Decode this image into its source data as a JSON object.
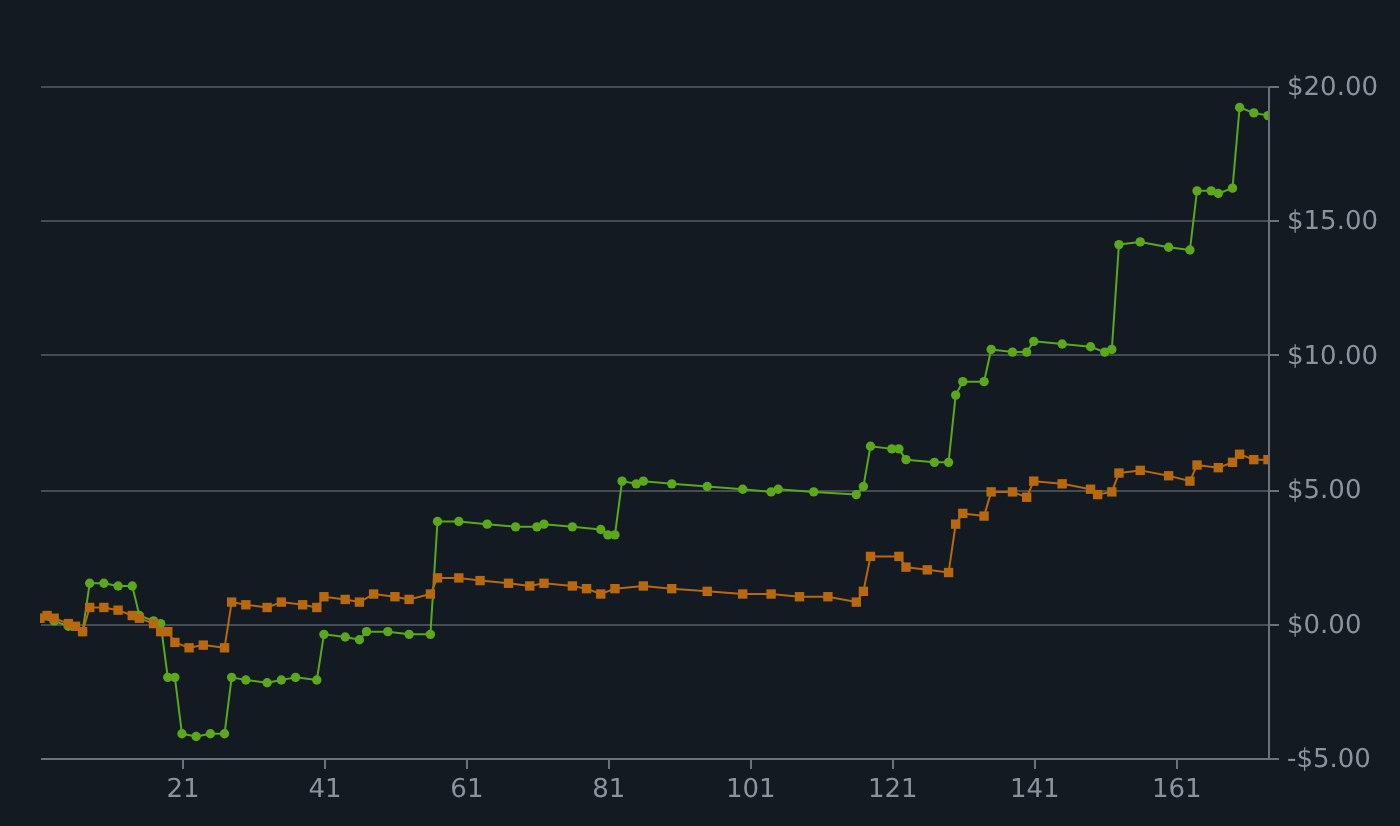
{
  "chart_data": {
    "type": "line",
    "xlim": [
      1,
      174
    ],
    "xticks": [
      21,
      41,
      61,
      81,
      101,
      121,
      141,
      161
    ],
    "ylim": [
      -5,
      20
    ],
    "yticks": [
      {
        "value": -5,
        "label": "-$5.00"
      },
      {
        "value": 0,
        "label": "$0.00"
      },
      {
        "value": 5,
        "label": "$5.00"
      },
      {
        "value": 10,
        "label": "$10.00"
      },
      {
        "value": 15,
        "label": "$15.00"
      },
      {
        "value": 20,
        "label": "$20.00"
      }
    ],
    "grid": "y",
    "series": [
      {
        "color": "#5ca81c",
        "marker": "circle",
        "x": [
          1,
          3,
          5,
          7,
          8,
          10,
          12,
          14,
          15,
          17,
          18,
          19,
          20,
          21,
          23,
          25,
          27,
          28,
          30,
          33,
          35,
          37,
          40,
          41,
          44,
          46,
          47,
          50,
          53,
          56,
          57,
          60,
          64,
          68,
          71,
          72,
          76,
          80,
          81,
          82,
          83,
          85,
          86,
          90,
          95,
          100,
          104,
          105,
          110,
          116,
          117,
          118,
          121,
          122,
          123,
          127,
          129,
          130,
          131,
          134,
          135,
          138,
          140,
          141,
          145,
          149,
          151,
          152,
          153,
          156,
          160,
          163,
          164,
          166,
          167,
          169,
          170,
          172,
          174
        ],
        "values": [
          0.2,
          0.1,
          -0.1,
          -0.3,
          1.5,
          1.5,
          1.4,
          1.4,
          0.3,
          0.1,
          0.0,
          -2.0,
          -2.0,
          -4.1,
          -4.2,
          -4.1,
          -4.1,
          -2.0,
          -2.1,
          -2.2,
          -2.1,
          -2.0,
          -2.1,
          -0.4,
          -0.5,
          -0.6,
          -0.3,
          -0.3,
          -0.4,
          -0.4,
          3.8,
          3.8,
          3.7,
          3.6,
          3.6,
          3.7,
          3.6,
          3.5,
          3.3,
          3.3,
          5.3,
          5.2,
          5.3,
          5.2,
          5.1,
          5.0,
          4.9,
          5.0,
          4.9,
          4.8,
          5.1,
          6.6,
          6.5,
          6.5,
          6.1,
          6.0,
          6.0,
          8.5,
          9.0,
          9.0,
          10.2,
          10.1,
          10.1,
          10.5,
          10.4,
          10.3,
          10.1,
          10.2,
          14.1,
          14.2,
          14.0,
          13.9,
          16.1,
          16.1,
          16.0,
          16.2,
          19.2,
          19.0,
          18.9
        ]
      },
      {
        "color": "#b8680f",
        "marker": "square",
        "x": [
          1,
          2,
          3,
          5,
          6,
          7,
          8,
          10,
          12,
          14,
          15,
          17,
          18,
          19,
          20,
          22,
          24,
          27,
          28,
          30,
          33,
          35,
          38,
          40,
          41,
          44,
          46,
          48,
          51,
          53,
          56,
          57,
          60,
          63,
          67,
          70,
          72,
          76,
          78,
          80,
          82,
          86,
          90,
          95,
          100,
          104,
          108,
          112,
          116,
          117,
          118,
          122,
          123,
          126,
          129,
          130,
          131,
          134,
          135,
          138,
          140,
          141,
          145,
          149,
          150,
          152,
          153,
          156,
          160,
          163,
          164,
          167,
          169,
          170,
          172,
          174
        ],
        "values": [
          0.2,
          0.3,
          0.2,
          0.0,
          -0.1,
          -0.3,
          0.6,
          0.6,
          0.5,
          0.3,
          0.2,
          0.0,
          -0.3,
          -0.3,
          -0.7,
          -0.9,
          -0.8,
          -0.9,
          0.8,
          0.7,
          0.6,
          0.8,
          0.7,
          0.6,
          1.0,
          0.9,
          0.8,
          1.1,
          1.0,
          0.9,
          1.1,
          1.7,
          1.7,
          1.6,
          1.5,
          1.4,
          1.5,
          1.4,
          1.3,
          1.1,
          1.3,
          1.4,
          1.3,
          1.2,
          1.1,
          1.1,
          1.0,
          1.0,
          0.8,
          1.2,
          2.5,
          2.5,
          2.1,
          2.0,
          1.9,
          3.7,
          4.1,
          4.0,
          4.9,
          4.9,
          4.7,
          5.3,
          5.2,
          5.0,
          4.8,
          4.9,
          5.6,
          5.7,
          5.5,
          5.3,
          5.9,
          5.8,
          6.0,
          6.3,
          6.1,
          6.1
        ]
      }
    ]
  }
}
